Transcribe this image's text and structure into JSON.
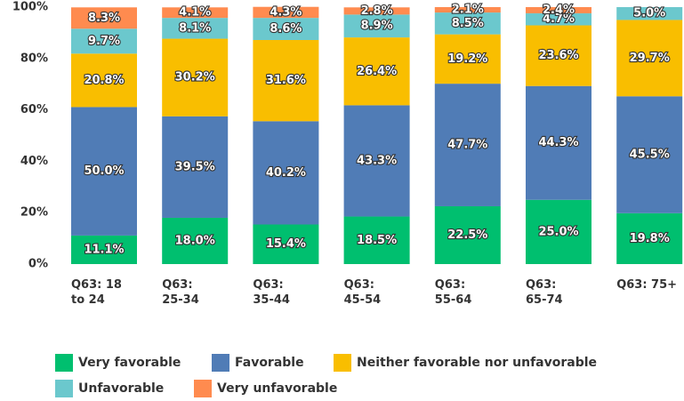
{
  "chart_data": {
    "type": "stacked_bar",
    "categories": [
      "Q63: 18\nto 24",
      "Q63:\n25-34",
      "Q63:\n35-44",
      "Q63:\n45-54",
      "Q63:\n55-64",
      "Q63:\n65-74",
      "Q63: 75+"
    ],
    "series": [
      {
        "name": "Very favorable",
        "color": "#00bf6f",
        "values": [
          11.1,
          18.0,
          15.4,
          18.5,
          22.5,
          25.0,
          19.8
        ],
        "value_labels": [
          "11.1%",
          "18.0%",
          "15.4%",
          "18.5%",
          "22.5%",
          "25.0%",
          "19.8%"
        ]
      },
      {
        "name": "Favorable",
        "color": "#507cb6",
        "values": [
          50.0,
          39.5,
          40.2,
          43.3,
          47.7,
          44.3,
          45.5
        ],
        "value_labels": [
          "50.0%",
          "39.5%",
          "40.2%",
          "43.3%",
          "47.7%",
          "44.3%",
          "45.5%"
        ]
      },
      {
        "name": "Neither favorable nor unfavorable",
        "color": "#f9be00",
        "values": [
          20.8,
          30.2,
          31.6,
          26.4,
          19.2,
          23.6,
          29.7
        ],
        "value_labels": [
          "20.8%",
          "30.2%",
          "31.6%",
          "26.4%",
          "19.2%",
          "23.6%",
          "29.7%"
        ]
      },
      {
        "name": "Unfavorable",
        "color": "#6bc8cd",
        "values": [
          9.7,
          8.1,
          8.6,
          8.9,
          8.5,
          4.7,
          5.0
        ],
        "value_labels": [
          "9.7%",
          "8.1%",
          "8.6%",
          "8.9%",
          "8.5%",
          "4.7%",
          "5.0%"
        ]
      },
      {
        "name": "Very unfavorable",
        "color": "#ff8b4f",
        "values": [
          8.3,
          4.1,
          4.3,
          2.8,
          2.1,
          2.4,
          0
        ],
        "value_labels": [
          "8.3%",
          "4.1%",
          "4.3%",
          "2.8%",
          "2.1%",
          "2.4%",
          null
        ]
      }
    ],
    "ylim": [
      0,
      100
    ],
    "yticks": [
      {
        "value": 0,
        "label": "0%"
      },
      {
        "value": 20,
        "label": "20%"
      },
      {
        "value": 40,
        "label": "40%"
      },
      {
        "value": 60,
        "label": "60%"
      },
      {
        "value": 80,
        "label": "80%"
      },
      {
        "value": 100,
        "label": "100%"
      }
    ]
  }
}
